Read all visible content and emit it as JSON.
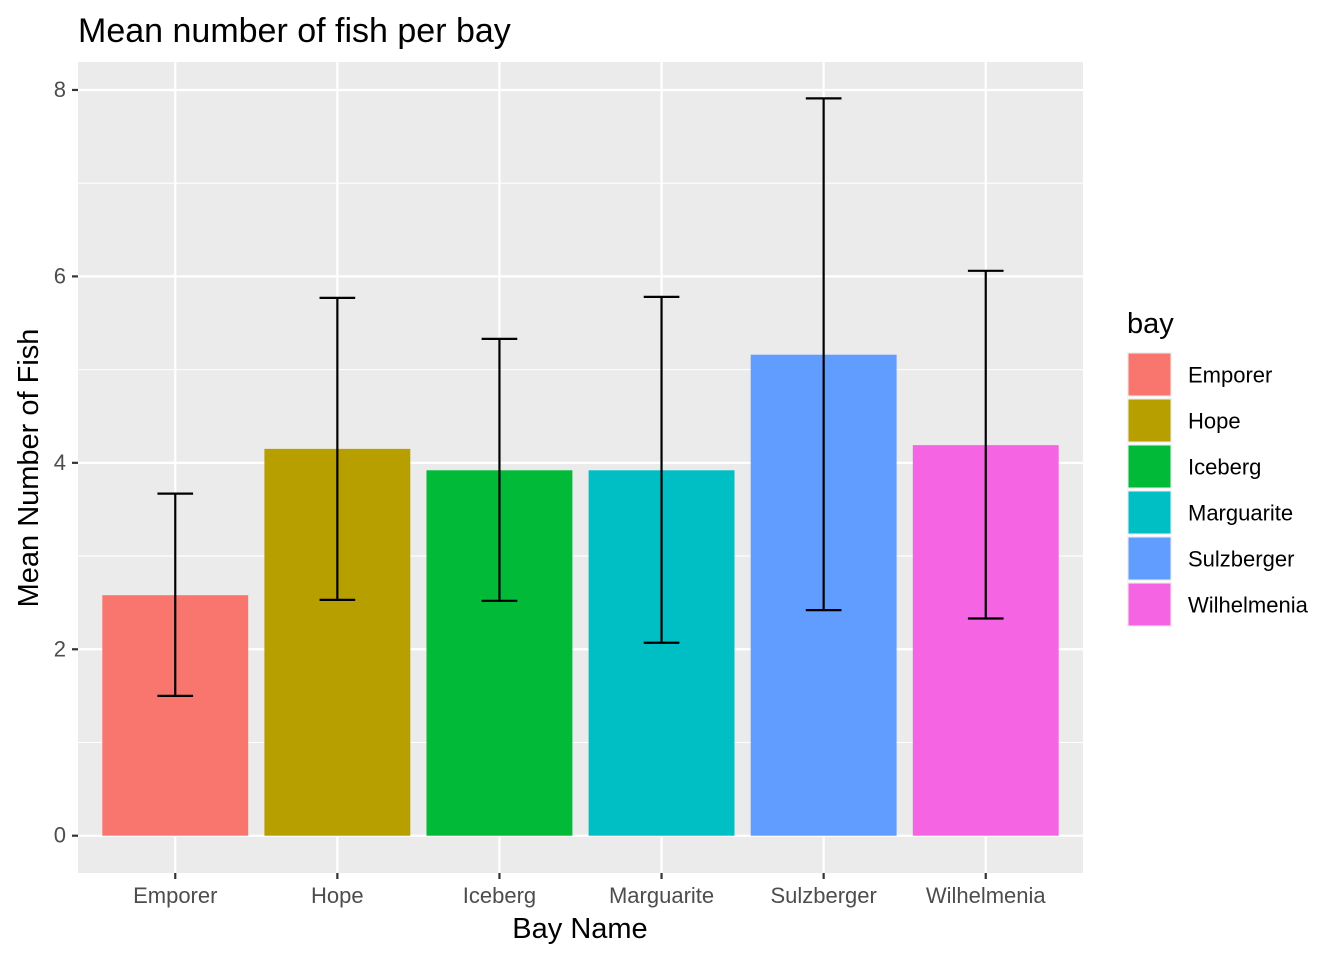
{
  "chart_data": {
    "type": "bar",
    "title": "Mean number of fish per bay",
    "xlabel": "Bay Name",
    "ylabel": "Mean Number of Fish",
    "categories": [
      "Emporer",
      "Hope",
      "Iceberg",
      "Marguarite",
      "Sulzberger",
      "Wilhelmenia"
    ],
    "values": [
      2.58,
      4.15,
      3.92,
      3.92,
      5.16,
      4.19
    ],
    "error_low": [
      1.5,
      2.53,
      2.52,
      2.07,
      2.42,
      2.33
    ],
    "error_high": [
      3.67,
      5.77,
      5.33,
      5.78,
      7.91,
      6.06
    ],
    "colors": [
      "#F8766D",
      "#B79F00",
      "#00BA38",
      "#00BFC4",
      "#619CFF",
      "#F564E3"
    ],
    "ylim": [
      -0.4,
      8.3
    ],
    "yticks": [
      0,
      2,
      4,
      6,
      8
    ],
    "ytick_labels": [
      "0",
      "2",
      "4",
      "6",
      "8"
    ],
    "grid": true,
    "legend": {
      "title": "bay",
      "position": "right",
      "entries": [
        "Emporer",
        "Hope",
        "Iceberg",
        "Marguarite",
        "Sulzberger",
        "Wilhelmenia"
      ]
    },
    "panel_background": "#EBEBEB",
    "grid_color": "#FFFFFF"
  }
}
